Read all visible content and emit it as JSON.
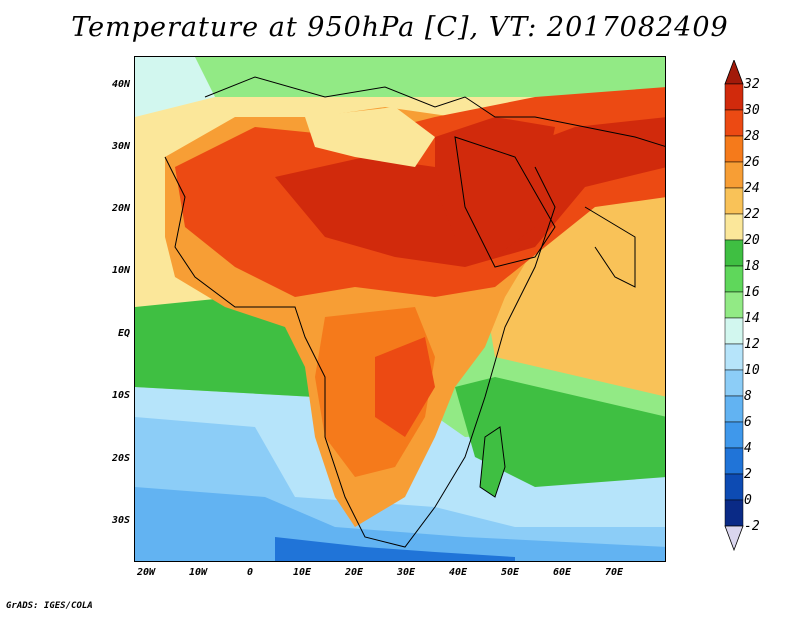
{
  "title": "Temperature at 950hPa [C], VT: 2017082409",
  "credit": "GrADS: IGES/COLA",
  "map": {
    "lat_labels": [
      "40N",
      "30N",
      "20N",
      "10N",
      "EQ",
      "10S",
      "20S",
      "30S"
    ],
    "lon_labels": [
      "20W",
      "10W",
      "0",
      "10E",
      "20E",
      "30E",
      "40E",
      "50E",
      "60E",
      "70E"
    ],
    "lat_range": [
      -36,
      45
    ],
    "lon_range": [
      -21,
      80
    ]
  },
  "colorbar": {
    "levels": [
      "32",
      "30",
      "28",
      "26",
      "24",
      "22",
      "20",
      "18",
      "16",
      "14",
      "12",
      "10",
      "8",
      "6",
      "4",
      "2",
      "0",
      "-2"
    ],
    "colors": [
      "#a21a0a",
      "#d12a0c",
      "#ec4a13",
      "#f57a1b",
      "#f79e35",
      "#f9c258",
      "#fbe79a",
      "#3fbf42",
      "#5fd75b",
      "#92ea85",
      "#d2f7ef",
      "#b6e4fa",
      "#8ccdf7",
      "#62b3f2",
      "#3f98eb",
      "#2074d8",
      "#0d4bb3",
      "#0a2a86",
      "#dad6ee"
    ]
  }
}
